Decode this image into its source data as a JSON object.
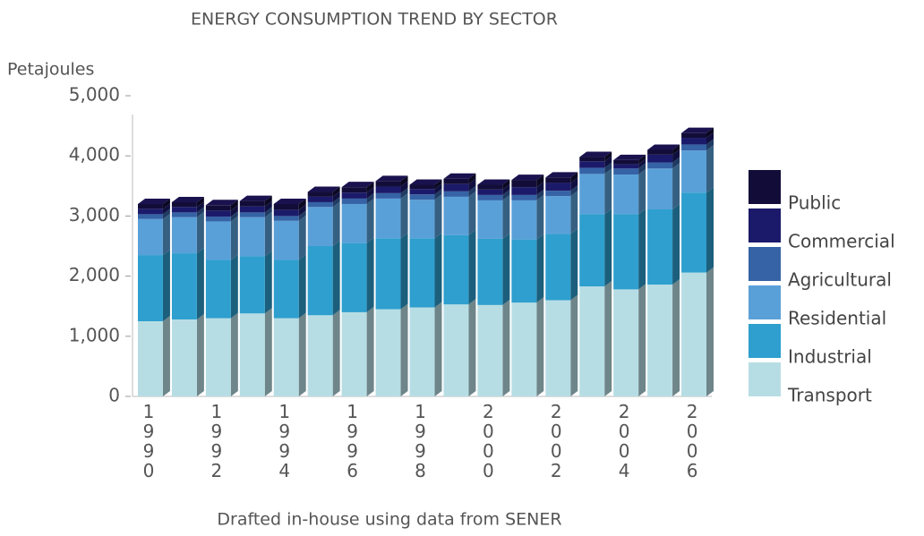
{
  "chart_data": {
    "type": "bar",
    "stacked": true,
    "title": "ENERGY CONSUMPTION TREND BY SECTOR",
    "y_label": "Petajoules",
    "footnote": "Drafted in-house using data from SENER",
    "categories": [
      "1990",
      null,
      "1992",
      null,
      "1994",
      null,
      "1996",
      null,
      "1998",
      null,
      "2000",
      null,
      "2002",
      null,
      "2004",
      null,
      "2006"
    ],
    "series": [
      {
        "name": "Transport",
        "color": "#b7dde4",
        "values": [
          1250,
          1280,
          1300,
          1380,
          1300,
          1350,
          1400,
          1450,
          1480,
          1530,
          1520,
          1560,
          1600,
          1830,
          1780,
          1860,
          2060
        ]
      },
      {
        "name": "Industrial",
        "color": "#2e9fce",
        "values": [
          1100,
          1100,
          970,
          950,
          970,
          1150,
          1150,
          1180,
          1150,
          1150,
          1100,
          1050,
          1100,
          1200,
          1250,
          1250,
          1330
        ]
      },
      {
        "name": "Residential",
        "color": "#5aa0d8",
        "values": [
          600,
          600,
          640,
          650,
          650,
          650,
          650,
          660,
          640,
          640,
          640,
          650,
          630,
          670,
          660,
          680,
          700
        ]
      },
      {
        "name": "Agricultural",
        "color": "#3563a5",
        "values": [
          80,
          80,
          80,
          80,
          80,
          80,
          90,
          90,
          90,
          90,
          90,
          90,
          90,
          100,
          100,
          100,
          100
        ]
      },
      {
        "name": "Commercial",
        "color": "#1b1a6a",
        "values": [
          90,
          90,
          100,
          100,
          100,
          90,
          100,
          110,
          90,
          120,
          90,
          130,
          130,
          110,
          70,
          130,
          110
        ]
      },
      {
        "name": "Public",
        "color": "#120d38",
        "values": [
          80,
          80,
          90,
          90,
          100,
          80,
          90,
          90,
          70,
          90,
          80,
          120,
          90,
          70,
          70,
          80,
          80
        ]
      }
    ],
    "ylim": [
      0,
      5000
    ],
    "yticks": [
      0,
      {
        "value": 1000,
        "label": "1,000"
      },
      {
        "value": 2000,
        "label": "2,000"
      },
      {
        "value": 3000,
        "label": "3,000"
      },
      {
        "value": 4000,
        "label": "4,000"
      },
      {
        "value": 5000,
        "label": "5,000"
      }
    ]
  }
}
